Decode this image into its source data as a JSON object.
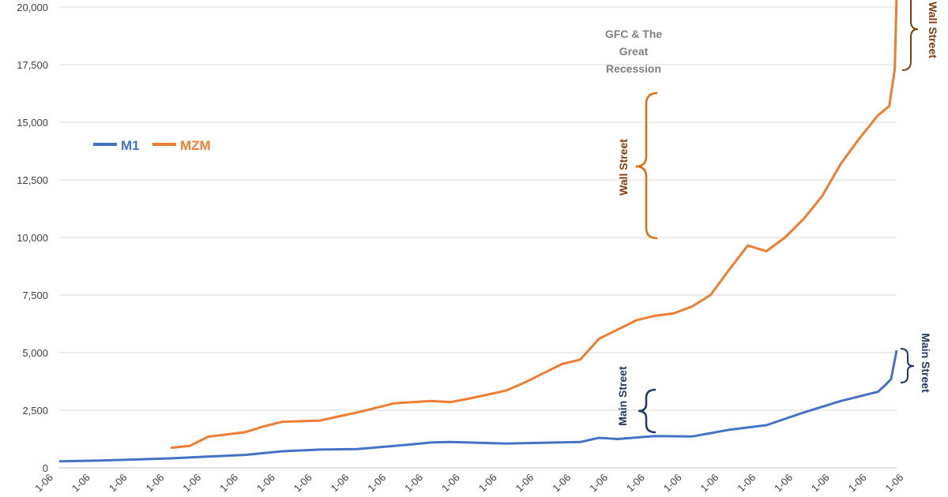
{
  "chart_data": {
    "type": "line",
    "title": "",
    "xlabel": "",
    "ylabel": "",
    "ylim": [
      0,
      20000
    ],
    "yticks": [
      0,
      2500,
      5000,
      7500,
      10000,
      12500,
      15000,
      17500,
      20000
    ],
    "ytick_labels": [
      "0",
      "2,500",
      "5,000",
      "7,500",
      "10,000",
      "12,500",
      "15,000",
      "17,500",
      "20,000"
    ],
    "xtick_labels": [
      "1-06",
      "1-06",
      "1-06",
      "1-06",
      "1-06",
      "1-06",
      "1-06",
      "1-06",
      "1-06",
      "1-06",
      "1-06",
      "1-06",
      "1-06",
      "1-06",
      "1-06",
      "1-06",
      "1-06",
      "1-06",
      "1-06",
      "1-06",
      "1-06",
      "1-06",
      "1-06",
      "1-06"
    ],
    "grid": true,
    "legend_position": "upper-left",
    "series": [
      {
        "name": "M1",
        "color": "#4472c4",
        "x": [
          0,
          1,
          2,
          3,
          4,
          5,
          6,
          7,
          8,
          9,
          10,
          10.5,
          11,
          12,
          13,
          14,
          14.5,
          15,
          16,
          17,
          18,
          19,
          20,
          21,
          22,
          22.2,
          22.35,
          22.5
        ],
        "values": [
          280,
          310,
          360,
          410,
          490,
          560,
          720,
          790,
          810,
          950,
          1100,
          1120,
          1100,
          1050,
          1090,
          1120,
          1300,
          1250,
          1380,
          1360,
          1650,
          1850,
          2400,
          2900,
          3300,
          3600,
          3850,
          5100
        ]
      },
      {
        "name": "MZM",
        "color": "#ed7d31",
        "x": [
          3,
          3.5,
          4,
          5,
          5.5,
          6,
          7,
          8,
          9,
          10,
          10.5,
          11,
          12,
          12.5,
          13,
          13.5,
          14,
          14.5,
          15,
          15.5,
          16,
          16.5,
          17,
          17.5,
          18,
          18.5,
          19,
          19.5,
          20,
          20.5,
          21,
          21.5,
          22,
          22.3,
          22.45,
          22.5
        ],
        "values": [
          870,
          950,
          1350,
          1550,
          1800,
          2000,
          2050,
          2400,
          2800,
          2900,
          2850,
          3000,
          3350,
          3700,
          4100,
          4500,
          4700,
          5600,
          6000,
          6400,
          6600,
          6700,
          7000,
          7500,
          8600,
          9650,
          9400,
          10000,
          10800,
          11800,
          13200,
          14300,
          15300,
          15700,
          17300,
          20500
        ]
      }
    ],
    "annotations": {
      "gfc_line1": "GFC & The",
      "gfc_line2": "Great",
      "gfc_line3": "Recession",
      "wall_street_mid": "Wall Street",
      "wall_street_right": "Wall Street",
      "main_street_mid": "Main Street",
      "main_street_right": "Main Street"
    }
  }
}
